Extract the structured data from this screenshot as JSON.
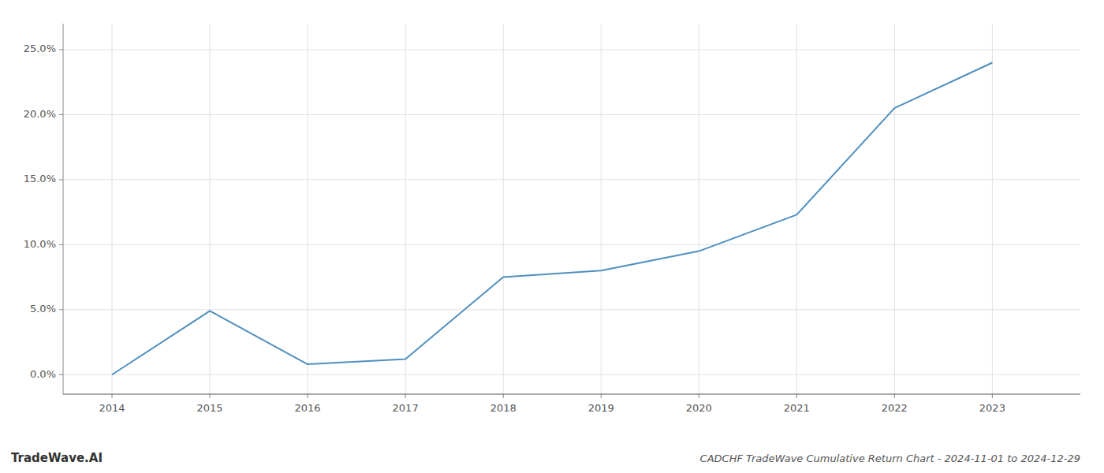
{
  "chart_data": {
    "type": "line",
    "title": "CADCHF TradeWave Cumulative Return Chart - 2024-11-01 to 2024-12-29",
    "annotations": [
      "TradeWave.AI"
    ],
    "x": [
      2014,
      2015,
      2016,
      2017,
      2018,
      2019,
      2020,
      2021,
      2022,
      2023
    ],
    "values": [
      0.0,
      4.9,
      0.8,
      1.2,
      7.5,
      8.0,
      9.5,
      12.3,
      20.5,
      24.0
    ],
    "color": "#4f8fbf",
    "xlim": [
      2013.5,
      2023.9
    ],
    "ylim": [
      -1.5,
      27.0
    ],
    "xticks": [
      2014,
      2015,
      2016,
      2017,
      2018,
      2019,
      2020,
      2021,
      2022,
      2023
    ],
    "yticks": [
      {
        "value": 0.0,
        "label": "0.0%"
      },
      {
        "value": 5.0,
        "label": "5.0%"
      },
      {
        "value": 10.0,
        "label": "10.0%"
      },
      {
        "value": 15.0,
        "label": "15.0%"
      },
      {
        "value": 20.0,
        "label": "20.0%"
      },
      {
        "value": 25.0,
        "label": "25.0%"
      }
    ],
    "grid": true
  }
}
